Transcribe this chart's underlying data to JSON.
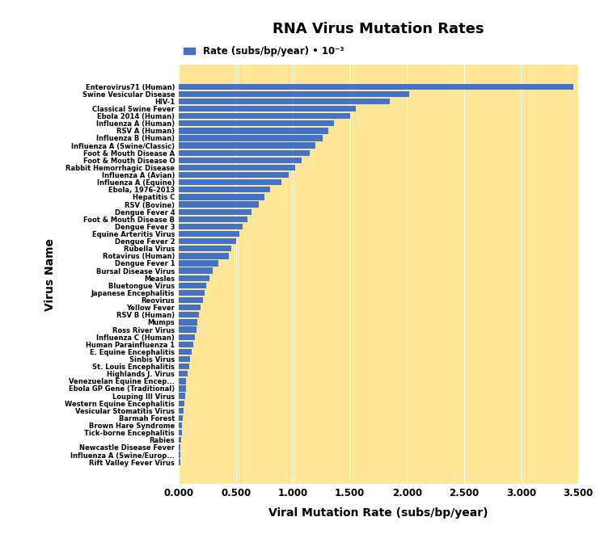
{
  "title": "RNA Virus Mutation Rates",
  "legend_label": "Rate (subs/bp/year) • 10⁻³",
  "xlabel": "Viral Mutation Rate (subs/bp/year)",
  "ylabel": "Virus Name",
  "bar_color": "#4472C4",
  "bg_color": "#FFE699",
  "xlim": [
    0,
    3.5
  ],
  "xticks": [
    0.0,
    0.5,
    1.0,
    1.5,
    2.0,
    2.5,
    3.0,
    3.5
  ],
  "xticklabels": [
    "0.000",
    "0.500",
    "1.000",
    "1.500",
    "2.000",
    "2.500",
    "3.000",
    "3.500"
  ],
  "viruses": [
    [
      "Rift Valley Fever Virus",
      0.01
    ],
    [
      "Influenza A (Swine/Europ...",
      0.012
    ],
    [
      "Newcastle Disease Fever",
      0.015
    ],
    [
      "Rabies",
      0.02
    ],
    [
      "Tick-borne Encephalitis",
      0.025
    ],
    [
      "Brown Hare Syndrome",
      0.03
    ],
    [
      "Barmah Forest",
      0.035
    ],
    [
      "Vesicular Stomatitis Virus",
      0.04
    ],
    [
      "Western Equine Encephalitis",
      0.05
    ],
    [
      "Louping Ill Virus",
      0.055
    ],
    [
      "Ebola GP Gene (Traditional)",
      0.06
    ],
    [
      "Venezuelan Equine Encep...",
      0.065
    ],
    [
      "Highlands J. Virus",
      0.08
    ],
    [
      "St. Louis Encephalitis",
      0.09
    ],
    [
      "Sinbis Virus",
      0.1
    ],
    [
      "E. Equine Encephalitis",
      0.11
    ],
    [
      "Human Parainfluenza 1",
      0.13
    ],
    [
      "Influenza C (Human)",
      0.14
    ],
    [
      "Ross River Virus",
      0.155
    ],
    [
      "Mumps",
      0.16
    ],
    [
      "RSV B (Human)",
      0.175
    ],
    [
      "Yellow Fever",
      0.19
    ],
    [
      "Reovirus",
      0.21
    ],
    [
      "Japanese Encephalitis",
      0.225
    ],
    [
      "Bluetongue Virus",
      0.24
    ],
    [
      "Measles",
      0.27
    ],
    [
      "Bursal Disease Virus",
      0.3
    ],
    [
      "Dengue Fever 1",
      0.35
    ],
    [
      "Rotavirus (Human)",
      0.44
    ],
    [
      "Rubella Virus",
      0.46
    ],
    [
      "Dengue Fever 2",
      0.5
    ],
    [
      "Equine Arteritis Virus",
      0.53
    ],
    [
      "Dengue Fever 3",
      0.56
    ],
    [
      "Foot & Mouth Disease B",
      0.6
    ],
    [
      "Dengue Fever 4",
      0.64
    ],
    [
      "RSV (Bovine)",
      0.7
    ],
    [
      "Hepatitis C",
      0.75
    ],
    [
      "Ebola, 1976-2013",
      0.8
    ],
    [
      "Influenza A (Equine)",
      0.9
    ],
    [
      "Influenza A (Avian)",
      0.96
    ],
    [
      "Rabbit Hemorrhagic Disease",
      1.02
    ],
    [
      "Foot & Mouth Disease O",
      1.08
    ],
    [
      "Foot & Mouth Disease A",
      1.15
    ],
    [
      "Influenza A (Swine/Classic)",
      1.2
    ],
    [
      "Influenza B (Human)",
      1.26
    ],
    [
      "RSV A (Human)",
      1.31
    ],
    [
      "Influenza A (Human)",
      1.36
    ],
    [
      "Ebola 2014 (Human)",
      1.5
    ],
    [
      "Classical Swine Fever",
      1.55
    ],
    [
      "HIV-1",
      1.85
    ],
    [
      "Swine Vesicular Disease",
      2.02
    ],
    [
      "Enterovirus71 (Human)",
      3.46
    ]
  ]
}
